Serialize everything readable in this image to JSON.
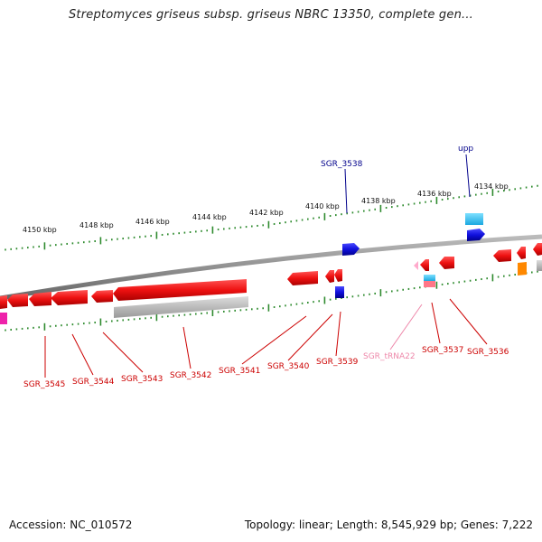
{
  "title": "Streptomyces griseus subsp. griseus NBRC 13350, complete gen...",
  "footer": {
    "accession": "Accession: NC_010572",
    "topology": "Topology: linear; Length: 8,545,929 bp; Genes: 7,222"
  },
  "scale_labels": [
    "4150 kbp",
    "4148 kbp",
    "4146 kbp",
    "4144 kbp",
    "4142 kbp",
    "4140 kbp",
    "4138 kbp",
    "4136 kbp",
    "4134 kbp"
  ],
  "gene_labels_above": [
    "SGR_3538",
    "upp"
  ],
  "gene_labels_below": [
    "SGR_3545",
    "SGR_3544",
    "SGR_3543",
    "SGR_3542",
    "SGR_3541",
    "SGR_3540",
    "SGR_3539",
    "SGR_tRNA22",
    "SGR_3537",
    "SGR_3536"
  ],
  "colors": {
    "backbone": "#8a8a8a",
    "tick": "#2e8b2e",
    "gene_forward_label": "#00008b",
    "gene_reverse_label": "#cc0000",
    "trna_label": "#ee88aa",
    "cds_red": "#ee1111",
    "cds_blue": "#1010dd",
    "cds_cyan": "#22bbee",
    "orange": "#ff8800",
    "magenta": "#ee22aa",
    "grey_feature": "#b8b8b8"
  }
}
